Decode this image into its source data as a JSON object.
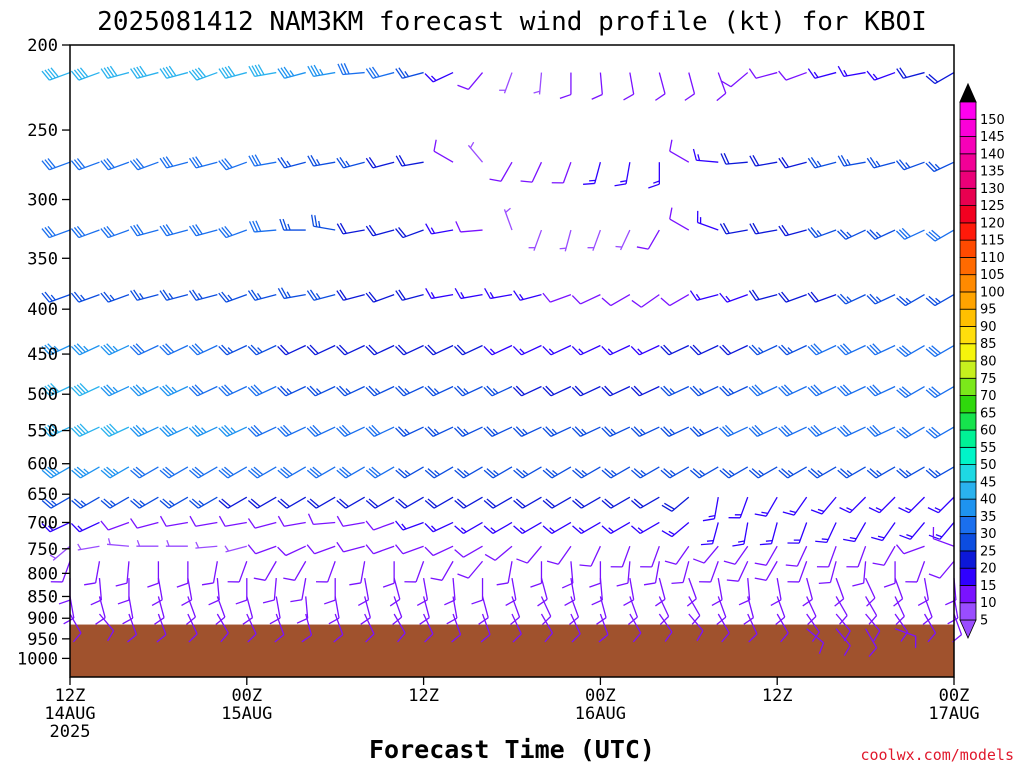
{
  "title": "2025081412 NAM3KM forecast wind profile (kt) for KBOI",
  "xlabel": "Forecast Time (UTC)",
  "credit": "coolwx.com/models",
  "colorbar": {
    "levels": [
      5,
      10,
      15,
      20,
      25,
      30,
      35,
      40,
      45,
      50,
      55,
      60,
      65,
      70,
      75,
      80,
      85,
      90,
      95,
      100,
      105,
      110,
      115,
      120,
      125,
      130,
      135,
      140,
      145,
      150
    ],
    "colors": [
      "#9a4dff",
      "#7a12ff",
      "#2f00ff",
      "#0c18d8",
      "#0c4de0",
      "#1a6fee",
      "#1e93f0",
      "#2ab2ee",
      "#1ed9e3",
      "#00f5c8",
      "#00f296",
      "#16e34d",
      "#2fd80c",
      "#7be81a",
      "#c7f01e",
      "#f6f50c",
      "#ffde0c",
      "#ffc000",
      "#ffa400",
      "#ff8a00",
      "#ff6a00",
      "#ff4a00",
      "#ff1a0a",
      "#f20020",
      "#e80050",
      "#eb0078",
      "#f20096",
      "#f700b8",
      "#fb00d8",
      "#ff00f0"
    ],
    "labels": [
      "5",
      "10",
      "15",
      "20",
      "25",
      "30",
      "35",
      "40",
      "45",
      "50",
      "55",
      "60",
      "65",
      "70",
      "75",
      "80",
      "85",
      "90",
      "95",
      "100",
      "105",
      "110",
      "115",
      "120",
      "125",
      "130",
      "135",
      "140",
      "145",
      "150"
    ]
  },
  "chart_data": {
    "type": "wind_barb_profile",
    "title": "2025081412 NAM3KM forecast wind profile (kt) for KBOI",
    "xlabel": "Forecast Time (UTC)",
    "ylabel": "",
    "y_scale": "log-pressure",
    "ylim": [
      1050,
      200
    ],
    "y_ticks": [
      {
        "value": 200,
        "label": "200"
      },
      {
        "value": 250,
        "label": "250"
      },
      {
        "value": 300,
        "label": "300"
      },
      {
        "value": 350,
        "label": "350"
      },
      {
        "value": 400,
        "label": "400"
      },
      {
        "value": 450,
        "label": "450"
      },
      {
        "value": 500,
        "label": "500"
      },
      {
        "value": 550,
        "label": "550"
      },
      {
        "value": 600,
        "label": "600"
      },
      {
        "value": 650,
        "label": "650"
      },
      {
        "value": 700,
        "label": "700"
      },
      {
        "value": 750,
        "label": "750"
      },
      {
        "value": 800,
        "label": "800"
      },
      {
        "value": 850,
        "label": "850"
      },
      {
        "value": 900,
        "label": "900"
      },
      {
        "value": 950,
        "label": "950"
      },
      {
        "value": 1000,
        "label": "1000"
      }
    ],
    "xlim": [
      0,
      60
    ],
    "x_ticks": [
      {
        "value": 0,
        "label1": "12Z",
        "label2": "14AUG",
        "label3": "2025"
      },
      {
        "value": 12,
        "label1": "00Z",
        "label2": "15AUG",
        "label3": ""
      },
      {
        "value": 24,
        "label1": "12Z",
        "label2": "",
        "label3": ""
      },
      {
        "value": 36,
        "label1": "00Z",
        "label2": "16AUG",
        "label3": ""
      },
      {
        "value": 48,
        "label1": "12Z",
        "label2": "",
        "label3": ""
      },
      {
        "value": 60,
        "label1": "00Z",
        "label2": "17AUG",
        "label3": ""
      }
    ],
    "surface_pressure": 915,
    "surface_color": "#a0522d",
    "x_hours": [
      0,
      2,
      4,
      6,
      8,
      10,
      12,
      14,
      16,
      18,
      20,
      22,
      24,
      26,
      28,
      30,
      32,
      34,
      36,
      38,
      40,
      42,
      44,
      46,
      48,
      50,
      52,
      54,
      56,
      58,
      60
    ],
    "levels": [
      {
        "p": 215,
        "dir": [
          250,
          250,
          255,
          255,
          255,
          250,
          255,
          260,
          255,
          260,
          265,
          255,
          255,
          245,
          220,
          200,
          185,
          180,
          175,
          170,
          165,
          165,
          160,
          230,
          255,
          250,
          255,
          260,
          250,
          255,
          240
        ],
        "spd": [
          40,
          40,
          40,
          40,
          40,
          40,
          40,
          40,
          35,
          35,
          30,
          30,
          25,
          15,
          10,
          5,
          5,
          10,
          10,
          10,
          10,
          10,
          10,
          10,
          10,
          10,
          15,
          15,
          15,
          20,
          20
        ]
      },
      {
        "p": 272,
        "dir": [
          250,
          250,
          250,
          250,
          255,
          255,
          250,
          260,
          255,
          260,
          255,
          255,
          260,
          300,
          320,
          210,
          205,
          200,
          195,
          190,
          180,
          300,
          275,
          265,
          260,
          255,
          255,
          260,
          255,
          250,
          245
        ],
        "spd": [
          30,
          30,
          30,
          30,
          30,
          30,
          30,
          30,
          25,
          25,
          25,
          20,
          20,
          10,
          5,
          10,
          10,
          10,
          15,
          15,
          15,
          10,
          15,
          20,
          20,
          20,
          25,
          25,
          25,
          25,
          25
        ]
      },
      {
        "p": 325,
        "dir": [
          250,
          250,
          250,
          255,
          255,
          255,
          250,
          265,
          270,
          280,
          260,
          255,
          250,
          260,
          265,
          340,
          200,
          195,
          200,
          205,
          210,
          300,
          290,
          260,
          260,
          255,
          250,
          245,
          245,
          245,
          240
        ],
        "spd": [
          30,
          30,
          30,
          30,
          30,
          30,
          30,
          30,
          25,
          25,
          20,
          20,
          20,
          15,
          10,
          5,
          5,
          5,
          5,
          5,
          10,
          10,
          15,
          20,
          20,
          20,
          25,
          25,
          25,
          30,
          30
        ]
      },
      {
        "p": 385,
        "dir": [
          250,
          250,
          250,
          255,
          255,
          255,
          250,
          255,
          260,
          255,
          255,
          250,
          255,
          260,
          260,
          260,
          255,
          250,
          245,
          240,
          235,
          240,
          255,
          250,
          255,
          250,
          250,
          245,
          245,
          240,
          240
        ],
        "spd": [
          25,
          25,
          25,
          25,
          25,
          25,
          25,
          25,
          25,
          25,
          20,
          20,
          20,
          15,
          15,
          15,
          15,
          10,
          10,
          10,
          10,
          10,
          15,
          15,
          20,
          20,
          20,
          25,
          25,
          25,
          25
        ]
      },
      {
        "p": 440,
        "dir": [
          245,
          245,
          245,
          245,
          245,
          245,
          245,
          245,
          245,
          245,
          245,
          245,
          245,
          245,
          245,
          245,
          245,
          245,
          245,
          245,
          245,
          245,
          245,
          245,
          245,
          245,
          245,
          245,
          245,
          240,
          240
        ],
        "spd": [
          35,
          35,
          35,
          30,
          30,
          30,
          25,
          25,
          20,
          20,
          20,
          20,
          20,
          20,
          20,
          15,
          15,
          15,
          15,
          15,
          15,
          20,
          20,
          20,
          25,
          25,
          30,
          30,
          30,
          30,
          30
        ]
      },
      {
        "p": 490,
        "dir": [
          245,
          245,
          245,
          245,
          245,
          245,
          245,
          245,
          245,
          245,
          245,
          245,
          245,
          245,
          245,
          245,
          245,
          245,
          245,
          245,
          245,
          245,
          245,
          245,
          245,
          245,
          245,
          245,
          245,
          240,
          240
        ],
        "spd": [
          40,
          40,
          35,
          35,
          35,
          30,
          30,
          30,
          25,
          25,
          25,
          25,
          25,
          25,
          25,
          25,
          20,
          20,
          20,
          20,
          20,
          25,
          25,
          25,
          30,
          30,
          30,
          30,
          30,
          30,
          30
        ]
      },
      {
        "p": 545,
        "dir": [
          245,
          245,
          245,
          245,
          245,
          245,
          245,
          245,
          245,
          245,
          245,
          245,
          245,
          245,
          245,
          245,
          245,
          245,
          245,
          245,
          245,
          245,
          245,
          245,
          245,
          245,
          245,
          245,
          245,
          240,
          240
        ],
        "spd": [
          40,
          40,
          40,
          35,
          35,
          35,
          35,
          30,
          30,
          30,
          30,
          30,
          25,
          25,
          25,
          25,
          25,
          25,
          25,
          25,
          25,
          25,
          25,
          30,
          30,
          30,
          30,
          30,
          30,
          30,
          30
        ]
      },
      {
        "p": 605,
        "dir": [
          240,
          240,
          240,
          240,
          240,
          240,
          240,
          240,
          240,
          240,
          240,
          240,
          240,
          240,
          240,
          240,
          240,
          240,
          240,
          240,
          240,
          240,
          240,
          240,
          240,
          240,
          240,
          240,
          240,
          240,
          240
        ],
        "spd": [
          35,
          35,
          35,
          30,
          30,
          30,
          30,
          30,
          30,
          30,
          30,
          30,
          25,
          25,
          25,
          25,
          25,
          25,
          25,
          25,
          25,
          25,
          25,
          25,
          25,
          25,
          25,
          25,
          25,
          25,
          25
        ]
      },
      {
        "p": 655,
        "dir": [
          240,
          240,
          240,
          240,
          240,
          240,
          240,
          240,
          240,
          240,
          240,
          240,
          240,
          240,
          240,
          240,
          240,
          240,
          240,
          240,
          240,
          230,
          190,
          200,
          210,
          215,
          220,
          225,
          225,
          225,
          225
        ],
        "spd": [
          25,
          25,
          25,
          25,
          25,
          25,
          20,
          20,
          20,
          20,
          20,
          20,
          20,
          20,
          20,
          20,
          20,
          20,
          20,
          20,
          20,
          20,
          15,
          15,
          15,
          15,
          15,
          15,
          15,
          15,
          15
        ]
      },
      {
        "p": 700,
        "dir": [
          245,
          245,
          250,
          255,
          260,
          260,
          260,
          255,
          260,
          265,
          260,
          250,
          250,
          245,
          240,
          240,
          240,
          240,
          240,
          240,
          240,
          230,
          195,
          190,
          195,
          200,
          205,
          210,
          215,
          220,
          220
        ],
        "spd": [
          15,
          15,
          10,
          10,
          10,
          10,
          10,
          10,
          10,
          10,
          10,
          10,
          15,
          15,
          15,
          15,
          15,
          15,
          15,
          15,
          15,
          15,
          15,
          15,
          15,
          15,
          15,
          15,
          15,
          15,
          15
        ]
      },
      {
        "p": 745,
        "dir": [
          230,
          260,
          275,
          270,
          270,
          265,
          255,
          250,
          245,
          250,
          255,
          250,
          250,
          245,
          240,
          230,
          220,
          215,
          205,
          200,
          200,
          215,
          220,
          215,
          210,
          205,
          200,
          200,
          210,
          250,
          290
        ],
        "spd": [
          5,
          5,
          5,
          5,
          5,
          5,
          5,
          10,
          10,
          10,
          10,
          10,
          10,
          10,
          10,
          10,
          10,
          10,
          10,
          10,
          10,
          10,
          10,
          10,
          10,
          10,
          10,
          10,
          10,
          10,
          10
        ]
      },
      {
        "p": 775,
        "dir": [
          200,
          190,
          185,
          180,
          180,
          190,
          200,
          210,
          210,
          200,
          190,
          180,
          200,
          210,
          220,
          190,
          180,
          175,
          180,
          185,
          190,
          195,
          200,
          205,
          210,
          200,
          195,
          185,
          180,
          200,
          220
        ],
        "spd": [
          10,
          10,
          10,
          10,
          10,
          10,
          10,
          10,
          10,
          10,
          10,
          10,
          10,
          10,
          10,
          10,
          10,
          10,
          10,
          10,
          10,
          10,
          10,
          10,
          10,
          10,
          10,
          10,
          10,
          10,
          10
        ]
      },
      {
        "p": 810,
        "dir": [
          180,
          175,
          180,
          170,
          170,
          175,
          180,
          185,
          190,
          180,
          170,
          165,
          170,
          175,
          180,
          170,
          165,
          170,
          175,
          170,
          165,
          160,
          170,
          175,
          170,
          165,
          160,
          155,
          160,
          170,
          175
        ],
        "spd": [
          10,
          10,
          10,
          10,
          10,
          10,
          10,
          10,
          10,
          10,
          10,
          10,
          10,
          10,
          10,
          10,
          10,
          10,
          10,
          10,
          10,
          10,
          10,
          10,
          10,
          10,
          10,
          10,
          10,
          10,
          10
        ]
      },
      {
        "p": 850,
        "dir": [
          170,
          165,
          170,
          165,
          160,
          160,
          165,
          170,
          175,
          170,
          165,
          160,
          165,
          170,
          165,
          160,
          155,
          160,
          165,
          160,
          155,
          150,
          160,
          165,
          160,
          155,
          150,
          150,
          155,
          160,
          170
        ],
        "spd": [
          10,
          10,
          10,
          10,
          10,
          10,
          10,
          10,
          10,
          10,
          10,
          10,
          10,
          10,
          10,
          10,
          10,
          10,
          10,
          10,
          10,
          10,
          10,
          10,
          10,
          10,
          10,
          10,
          10,
          10,
          10
        ]
      },
      {
        "p": 890,
        "dir": [
          150,
          140,
          160,
          160,
          155,
          150,
          155,
          160,
          165,
          160,
          155,
          150,
          155,
          160,
          160,
          155,
          150,
          155,
          160,
          150,
          145,
          140,
          150,
          155,
          150,
          145,
          140,
          140,
          145,
          150,
          160
        ],
        "spd": [
          10,
          10,
          10,
          10,
          10,
          10,
          10,
          10,
          10,
          10,
          10,
          10,
          10,
          10,
          10,
          10,
          10,
          10,
          10,
          10,
          10,
          10,
          10,
          10,
          10,
          10,
          10,
          10,
          10,
          10,
          10
        ]
      },
      {
        "p": 925,
        "dir": [
          0,
          0,
          0,
          0,
          0,
          0,
          0,
          0,
          0,
          0,
          0,
          0,
          0,
          0,
          0,
          0,
          0,
          0,
          0,
          0,
          0,
          0,
          0,
          0,
          0,
          130,
          140,
          150,
          110,
          0,
          0
        ],
        "spd": [
          0,
          0,
          0,
          0,
          0,
          0,
          0,
          0,
          0,
          0,
          0,
          0,
          0,
          0,
          0,
          0,
          0,
          0,
          0,
          0,
          0,
          0,
          0,
          0,
          0,
          10,
          10,
          10,
          10,
          0,
          0
        ]
      }
    ]
  }
}
